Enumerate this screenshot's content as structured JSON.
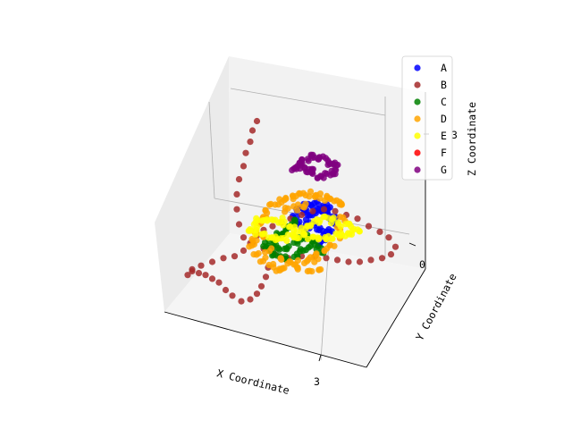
{
  "chart_data": {
    "type": "scatter",
    "projection": "3d",
    "title": "",
    "xlabel": "X Coordinate",
    "ylabel": "Y Coordinate",
    "zlabel": "Z Coordinate",
    "x_ticks": [
      "3"
    ],
    "y_ticks": [
      "0"
    ],
    "z_ticks": [
      "3"
    ],
    "grid": true,
    "legend_position": "top-right",
    "series": [
      {
        "name": "A",
        "color": "#0000ff",
        "shape": "blob",
        "points": [
          [
            0.62,
            0.53
          ],
          [
            0.6,
            0.52
          ],
          [
            0.64,
            0.55
          ],
          [
            0.66,
            0.58
          ],
          [
            0.58,
            0.55
          ],
          [
            0.56,
            0.56
          ],
          [
            0.55,
            0.53
          ],
          [
            0.54,
            0.5
          ],
          [
            0.57,
            0.5
          ],
          [
            0.6,
            0.49
          ],
          [
            0.63,
            0.5
          ],
          [
            0.65,
            0.52
          ],
          [
            0.67,
            0.55
          ],
          [
            0.68,
            0.6
          ],
          [
            0.66,
            0.63
          ],
          [
            0.64,
            0.64
          ],
          [
            0.61,
            0.62
          ],
          [
            0.58,
            0.6
          ],
          [
            0.56,
            0.61
          ],
          [
            0.54,
            0.63
          ],
          [
            0.52,
            0.6
          ],
          [
            0.5,
            0.57
          ],
          [
            0.51,
            0.53
          ],
          [
            0.65,
            0.66
          ],
          [
            0.63,
            0.68
          ],
          [
            0.62,
            0.71
          ]
        ]
      },
      {
        "name": "B",
        "color": "#a52a2a",
        "shape": "loop",
        "points": [
          [
            0.38,
            0.83
          ],
          [
            0.37,
            0.88
          ],
          [
            0.35,
            0.93
          ],
          [
            0.33,
            0.97
          ],
          [
            0.3,
            1.0
          ],
          [
            0.26,
            1.01
          ],
          [
            0.22,
            0.98
          ],
          [
            0.19,
            0.95
          ],
          [
            0.16,
            0.91
          ],
          [
            0.13,
            0.89
          ],
          [
            0.1,
            0.87
          ],
          [
            0.07,
            0.86
          ],
          [
            0.04,
            0.85
          ],
          [
            0.02,
            0.87
          ],
          [
            0.04,
            0.84
          ],
          [
            0.08,
            0.82
          ],
          [
            0.13,
            0.8
          ],
          [
            0.18,
            0.78
          ],
          [
            0.23,
            0.77
          ],
          [
            0.27,
            0.74
          ],
          [
            0.3,
            0.7
          ],
          [
            0.33,
            0.66
          ],
          [
            0.36,
            0.63
          ],
          [
            0.4,
            0.61
          ],
          [
            0.44,
            0.59
          ],
          [
            0.48,
            0.57
          ],
          [
            0.53,
            0.55
          ],
          [
            0.58,
            0.53
          ],
          [
            0.63,
            0.52
          ],
          [
            0.68,
            0.53
          ],
          [
            0.73,
            0.55
          ],
          [
            0.78,
            0.57
          ],
          [
            0.83,
            0.61
          ],
          [
            0.88,
            0.64
          ],
          [
            0.92,
            0.67
          ],
          [
            0.95,
            0.72
          ],
          [
            0.93,
            0.76
          ],
          [
            0.89,
            0.78
          ],
          [
            0.84,
            0.79
          ],
          [
            0.79,
            0.8
          ],
          [
            0.74,
            0.8
          ],
          [
            0.69,
            0.79
          ],
          [
            0.64,
            0.78
          ],
          [
            0.59,
            0.77
          ],
          [
            0.53,
            0.77
          ],
          [
            0.47,
            0.78
          ],
          [
            0.41,
            0.76
          ],
          [
            0.36,
            0.73
          ],
          [
            0.31,
            0.7
          ],
          [
            0.27,
            0.67
          ],
          [
            0.25,
            0.6
          ],
          [
            0.24,
            0.52
          ],
          [
            0.24,
            0.44
          ],
          [
            0.25,
            0.36
          ],
          [
            0.27,
            0.29
          ],
          [
            0.28,
            0.22
          ],
          [
            0.3,
            0.16
          ],
          [
            0.31,
            0.1
          ],
          [
            0.33,
            0.05
          ]
        ]
      },
      {
        "name": "C",
        "color": "#008000",
        "shape": "blob",
        "points": [
          [
            0.5,
            0.58
          ],
          [
            0.48,
            0.6
          ],
          [
            0.46,
            0.62
          ],
          [
            0.44,
            0.64
          ],
          [
            0.42,
            0.66
          ],
          [
            0.4,
            0.68
          ],
          [
            0.38,
            0.7
          ],
          [
            0.41,
            0.72
          ],
          [
            0.44,
            0.73
          ],
          [
            0.47,
            0.72
          ],
          [
            0.5,
            0.7
          ],
          [
            0.53,
            0.68
          ],
          [
            0.56,
            0.67
          ],
          [
            0.58,
            0.7
          ],
          [
            0.56,
            0.73
          ],
          [
            0.53,
            0.74
          ],
          [
            0.5,
            0.76
          ],
          [
            0.47,
            0.78
          ],
          [
            0.44,
            0.78
          ],
          [
            0.41,
            0.76
          ],
          [
            0.39,
            0.74
          ],
          [
            0.37,
            0.72
          ],
          [
            0.6,
            0.72
          ],
          [
            0.62,
            0.74
          ]
        ]
      },
      {
        "name": "D",
        "color": "#ffa500",
        "shape": "blob",
        "points": [
          [
            0.4,
            0.5
          ],
          [
            0.43,
            0.48
          ],
          [
            0.46,
            0.47
          ],
          [
            0.49,
            0.46
          ],
          [
            0.52,
            0.45
          ],
          [
            0.55,
            0.44
          ],
          [
            0.58,
            0.44
          ],
          [
            0.61,
            0.45
          ],
          [
            0.64,
            0.46
          ],
          [
            0.67,
            0.47
          ],
          [
            0.7,
            0.48
          ],
          [
            0.72,
            0.5
          ],
          [
            0.38,
            0.53
          ],
          [
            0.36,
            0.56
          ],
          [
            0.34,
            0.6
          ],
          [
            0.33,
            0.64
          ],
          [
            0.32,
            0.68
          ],
          [
            0.31,
            0.72
          ],
          [
            0.33,
            0.76
          ],
          [
            0.36,
            0.79
          ],
          [
            0.39,
            0.82
          ],
          [
            0.42,
            0.84
          ],
          [
            0.45,
            0.83
          ],
          [
            0.48,
            0.81
          ],
          [
            0.51,
            0.8
          ],
          [
            0.55,
            0.8
          ],
          [
            0.58,
            0.79
          ],
          [
            0.61,
            0.77
          ],
          [
            0.64,
            0.74
          ],
          [
            0.67,
            0.71
          ],
          [
            0.69,
            0.67
          ],
          [
            0.7,
            0.62
          ],
          [
            0.71,
            0.57
          ],
          [
            0.46,
            0.52
          ],
          [
            0.5,
            0.51
          ],
          [
            0.54,
            0.5
          ],
          [
            0.35,
            0.66
          ],
          [
            0.38,
            0.74
          ],
          [
            0.44,
            0.79
          ],
          [
            0.52,
            0.84
          ],
          [
            0.57,
            0.86
          ],
          [
            0.62,
            0.84
          ]
        ]
      },
      {
        "name": "E",
        "color": "#ffff00",
        "shape": "blob",
        "points": [
          [
            0.32,
            0.6
          ],
          [
            0.34,
            0.58
          ],
          [
            0.37,
            0.57
          ],
          [
            0.4,
            0.57
          ],
          [
            0.43,
            0.58
          ],
          [
            0.46,
            0.6
          ],
          [
            0.49,
            0.62
          ],
          [
            0.52,
            0.63
          ],
          [
            0.55,
            0.62
          ],
          [
            0.58,
            0.6
          ],
          [
            0.61,
            0.58
          ],
          [
            0.64,
            0.57
          ],
          [
            0.67,
            0.58
          ],
          [
            0.7,
            0.6
          ],
          [
            0.73,
            0.61
          ],
          [
            0.76,
            0.62
          ],
          [
            0.78,
            0.63
          ],
          [
            0.75,
            0.64
          ],
          [
            0.72,
            0.65
          ],
          [
            0.69,
            0.66
          ],
          [
            0.66,
            0.67
          ],
          [
            0.63,
            0.68
          ],
          [
            0.6,
            0.68
          ],
          [
            0.57,
            0.67
          ],
          [
            0.54,
            0.66
          ],
          [
            0.51,
            0.66
          ],
          [
            0.48,
            0.67
          ],
          [
            0.45,
            0.68
          ],
          [
            0.42,
            0.68
          ],
          [
            0.39,
            0.67
          ],
          [
            0.36,
            0.66
          ],
          [
            0.33,
            0.64
          ],
          [
            0.3,
            0.62
          ]
        ]
      },
      {
        "name": "F",
        "color": "#ff0000",
        "shape": "blob",
        "points": []
      },
      {
        "name": "G",
        "color": "#800080",
        "shape": "blob",
        "points": [
          [
            0.5,
            0.3
          ],
          [
            0.52,
            0.28
          ],
          [
            0.54,
            0.26
          ],
          [
            0.56,
            0.25
          ],
          [
            0.58,
            0.24
          ],
          [
            0.6,
            0.24
          ],
          [
            0.62,
            0.25
          ],
          [
            0.64,
            0.26
          ],
          [
            0.66,
            0.27
          ],
          [
            0.68,
            0.28
          ],
          [
            0.69,
            0.3
          ],
          [
            0.67,
            0.32
          ],
          [
            0.65,
            0.33
          ],
          [
            0.63,
            0.34
          ],
          [
            0.61,
            0.34
          ],
          [
            0.59,
            0.33
          ],
          [
            0.57,
            0.32
          ],
          [
            0.55,
            0.31
          ],
          [
            0.53,
            0.3
          ],
          [
            0.51,
            0.29
          ]
        ]
      }
    ]
  }
}
